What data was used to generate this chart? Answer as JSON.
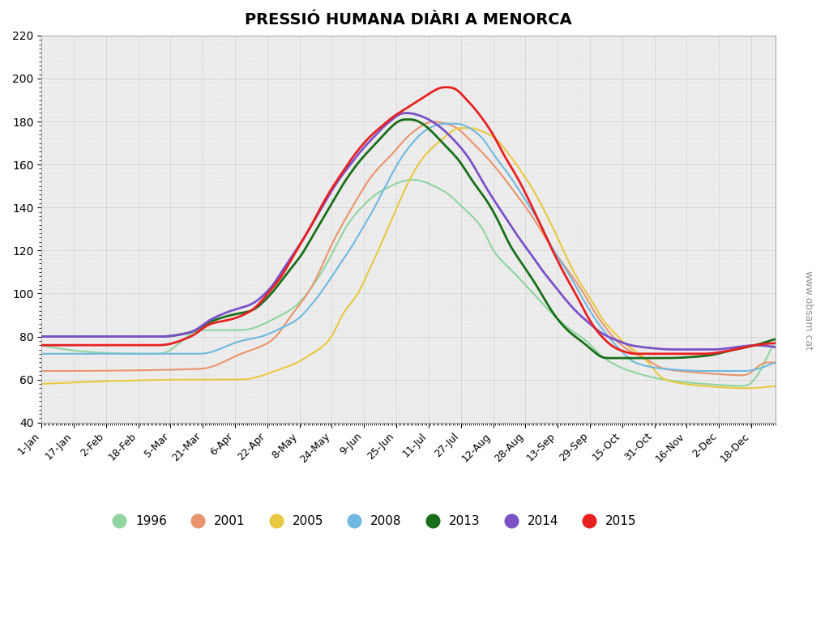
{
  "title": "PRESSIÓ HUMANA DIÀRI A MENORCA",
  "title_text": "PRESSIÓ HUMANA DIÀRI A MENORCA",
  "ylim": [
    40,
    220
  ],
  "yticks": [
    40,
    60,
    80,
    100,
    120,
    140,
    160,
    180,
    200,
    220
  ],
  "background_color": "#ffffff",
  "grid_color": "#cccccc",
  "watermark": "www.obsam.cat",
  "xtick_labels": [
    "1-Jan",
    "17-Jan",
    "2-Feb",
    "18-Feb",
    "5-Mar",
    "21-Mar",
    "6-Apr",
    "22-Apr",
    "8-May",
    "24-May",
    "9-Jun",
    "25-Jun",
    "11-Jul",
    "27-Jul",
    "12-Aug",
    "28-Aug",
    "13-Sep",
    "29-Sep",
    "15-Oct",
    "31-Oct",
    "16-Nov",
    "2-Dec",
    "18-Dec"
  ],
  "xtick_days": [
    1,
    17,
    33,
    49,
    65,
    81,
    97,
    113,
    129,
    145,
    161,
    177,
    193,
    209,
    225,
    241,
    257,
    273,
    289,
    305,
    321,
    337,
    353
  ],
  "legend_years": [
    "1996",
    "2001",
    "2005",
    "2008",
    "2013",
    "2014",
    "2015"
  ],
  "legend_colors": [
    "#90d4a0",
    "#e8956e",
    "#e8c840",
    "#70b8e0",
    "#1a6e1a",
    "#7b52c8",
    "#e82020"
  ],
  "series": {
    "1996": {
      "color": "#90d4a0",
      "linewidth": 1.5,
      "keypoints": [
        [
          1,
          76
        ],
        [
          60,
          72
        ],
        [
          80,
          83
        ],
        [
          100,
          83
        ],
        [
          120,
          90
        ],
        [
          128,
          95
        ],
        [
          140,
          110
        ],
        [
          155,
          135
        ],
        [
          170,
          148
        ],
        [
          185,
          153
        ],
        [
          200,
          148
        ],
        [
          210,
          140
        ],
        [
          220,
          130
        ],
        [
          225,
          120
        ],
        [
          235,
          110
        ],
        [
          245,
          100
        ],
        [
          255,
          90
        ],
        [
          265,
          82
        ],
        [
          270,
          79
        ],
        [
          280,
          70
        ],
        [
          290,
          65
        ],
        [
          310,
          60
        ],
        [
          330,
          58
        ],
        [
          350,
          57
        ],
        [
          365,
          79
        ]
      ]
    },
    "2001": {
      "color": "#e8956e",
      "linewidth": 1.5,
      "keypoints": [
        [
          1,
          64
        ],
        [
          80,
          65
        ],
        [
          100,
          72
        ],
        [
          115,
          78
        ],
        [
          125,
          90
        ],
        [
          135,
          103
        ],
        [
          145,
          123
        ],
        [
          155,
          140
        ],
        [
          165,
          155
        ],
        [
          175,
          165
        ],
        [
          185,
          175
        ],
        [
          195,
          180
        ],
        [
          205,
          178
        ],
        [
          215,
          170
        ],
        [
          225,
          160
        ],
        [
          235,
          148
        ],
        [
          245,
          135
        ],
        [
          255,
          120
        ],
        [
          265,
          107
        ],
        [
          270,
          100
        ],
        [
          275,
          92
        ],
        [
          280,
          85
        ],
        [
          290,
          75
        ],
        [
          300,
          70
        ],
        [
          310,
          65
        ],
        [
          330,
          63
        ],
        [
          350,
          62
        ],
        [
          360,
          68
        ],
        [
          365,
          68
        ]
      ]
    },
    "2005": {
      "color": "#e8c840",
      "linewidth": 1.5,
      "keypoints": [
        [
          1,
          58
        ],
        [
          80,
          60
        ],
        [
          100,
          60
        ],
        [
          120,
          65
        ],
        [
          128,
          68
        ],
        [
          135,
          72
        ],
        [
          140,
          75
        ],
        [
          145,
          80
        ],
        [
          150,
          90
        ],
        [
          158,
          100
        ],
        [
          163,
          110
        ],
        [
          168,
          120
        ],
        [
          175,
          135
        ],
        [
          183,
          152
        ],
        [
          190,
          163
        ],
        [
          200,
          172
        ],
        [
          208,
          177
        ],
        [
          215,
          177
        ],
        [
          218,
          176
        ],
        [
          225,
          173
        ],
        [
          235,
          162
        ],
        [
          245,
          148
        ],
        [
          255,
          130
        ],
        [
          265,
          110
        ],
        [
          275,
          95
        ],
        [
          280,
          87
        ],
        [
          285,
          82
        ],
        [
          290,
          77
        ],
        [
          300,
          70
        ],
        [
          310,
          60
        ],
        [
          330,
          57
        ],
        [
          350,
          56
        ],
        [
          365,
          57
        ]
      ]
    },
    "2008": {
      "color": "#70b8e0",
      "linewidth": 1.5,
      "keypoints": [
        [
          1,
          72
        ],
        [
          80,
          72
        ],
        [
          100,
          78
        ],
        [
          110,
          80
        ],
        [
          120,
          84
        ],
        [
          128,
          88
        ],
        [
          135,
          95
        ],
        [
          140,
          101
        ],
        [
          145,
          108
        ],
        [
          150,
          115
        ],
        [
          155,
          122
        ],
        [
          160,
          130
        ],
        [
          165,
          138
        ],
        [
          170,
          147
        ],
        [
          175,
          156
        ],
        [
          180,
          164
        ],
        [
          185,
          170
        ],
        [
          190,
          175
        ],
        [
          200,
          179
        ],
        [
          208,
          179
        ],
        [
          215,
          176
        ],
        [
          220,
          172
        ],
        [
          225,
          165
        ],
        [
          233,
          155
        ],
        [
          240,
          145
        ],
        [
          248,
          133
        ],
        [
          255,
          120
        ],
        [
          262,
          110
        ],
        [
          268,
          100
        ],
        [
          273,
          92
        ],
        [
          278,
          85
        ],
        [
          283,
          79
        ],
        [
          290,
          72
        ],
        [
          295,
          68
        ],
        [
          310,
          65
        ],
        [
          330,
          64
        ],
        [
          350,
          64
        ],
        [
          365,
          68
        ]
      ]
    },
    "2013": {
      "color": "#1a6e1a",
      "linewidth": 2.0,
      "keypoints": [
        [
          1,
          80
        ],
        [
          60,
          80
        ],
        [
          75,
          82
        ],
        [
          85,
          87
        ],
        [
          95,
          90
        ],
        [
          105,
          92
        ],
        [
          115,
          100
        ],
        [
          120,
          106
        ],
        [
          125,
          112
        ],
        [
          130,
          118
        ],
        [
          135,
          126
        ],
        [
          140,
          134
        ],
        [
          145,
          142
        ],
        [
          150,
          150
        ],
        [
          155,
          157
        ],
        [
          160,
          163
        ],
        [
          165,
          168
        ],
        [
          170,
          173
        ],
        [
          175,
          178
        ],
        [
          180,
          181
        ],
        [
          185,
          181
        ],
        [
          190,
          179
        ],
        [
          195,
          175
        ],
        [
          200,
          170
        ],
        [
          208,
          162
        ],
        [
          215,
          152
        ],
        [
          222,
          143
        ],
        [
          228,
          133
        ],
        [
          233,
          123
        ],
        [
          240,
          113
        ],
        [
          247,
          103
        ],
        [
          252,
          95
        ],
        [
          257,
          88
        ],
        [
          263,
          82
        ],
        [
          270,
          77
        ],
        [
          275,
          73
        ],
        [
          280,
          70
        ],
        [
          295,
          70
        ],
        [
          310,
          70
        ],
        [
          330,
          71
        ],
        [
          345,
          74
        ],
        [
          355,
          76
        ],
        [
          365,
          79
        ]
      ]
    },
    "2014": {
      "color": "#7b52c8",
      "linewidth": 2.0,
      "keypoints": [
        [
          1,
          80
        ],
        [
          60,
          80
        ],
        [
          75,
          82
        ],
        [
          85,
          88
        ],
        [
          95,
          92
        ],
        [
          105,
          95
        ],
        [
          115,
          103
        ],
        [
          120,
          110
        ],
        [
          125,
          117
        ],
        [
          130,
          124
        ],
        [
          135,
          132
        ],
        [
          140,
          140
        ],
        [
          145,
          148
        ],
        [
          150,
          155
        ],
        [
          155,
          161
        ],
        [
          160,
          167
        ],
        [
          165,
          172
        ],
        [
          170,
          177
        ],
        [
          175,
          181
        ],
        [
          180,
          184
        ],
        [
          183,
          184
        ],
        [
          188,
          183
        ],
        [
          193,
          181
        ],
        [
          198,
          178
        ],
        [
          205,
          172
        ],
        [
          213,
          163
        ],
        [
          218,
          155
        ],
        [
          223,
          147
        ],
        [
          230,
          137
        ],
        [
          237,
          127
        ],
        [
          244,
          118
        ],
        [
          250,
          110
        ],
        [
          256,
          103
        ],
        [
          262,
          96
        ],
        [
          268,
          90
        ],
        [
          273,
          86
        ],
        [
          278,
          82
        ],
        [
          282,
          80
        ],
        [
          287,
          78
        ],
        [
          293,
          76
        ],
        [
          300,
          75
        ],
        [
          315,
          74
        ],
        [
          335,
          74
        ],
        [
          345,
          75
        ],
        [
          355,
          76
        ],
        [
          365,
          75
        ]
      ]
    },
    "2015": {
      "color": "#e82020",
      "linewidth": 2.0,
      "keypoints": [
        [
          1,
          76
        ],
        [
          60,
          76
        ],
        [
          75,
          80
        ],
        [
          85,
          86
        ],
        [
          95,
          88
        ],
        [
          105,
          92
        ],
        [
          115,
          102
        ],
        [
          120,
          108
        ],
        [
          125,
          116
        ],
        [
          130,
          124
        ],
        [
          135,
          132
        ],
        [
          140,
          141
        ],
        [
          145,
          149
        ],
        [
          150,
          156
        ],
        [
          155,
          163
        ],
        [
          160,
          169
        ],
        [
          165,
          174
        ],
        [
          170,
          178
        ],
        [
          175,
          182
        ],
        [
          180,
          185
        ],
        [
          185,
          188
        ],
        [
          190,
          191
        ],
        [
          195,
          194
        ],
        [
          200,
          196
        ],
        [
          203,
          196
        ],
        [
          207,
          195
        ],
        [
          210,
          192
        ],
        [
          215,
          187
        ],
        [
          220,
          181
        ],
        [
          225,
          174
        ],
        [
          230,
          165
        ],
        [
          237,
          154
        ],
        [
          243,
          143
        ],
        [
          249,
          131
        ],
        [
          255,
          119
        ],
        [
          261,
          108
        ],
        [
          267,
          98
        ],
        [
          272,
          89
        ],
        [
          277,
          82
        ],
        [
          281,
          78
        ],
        [
          285,
          75
        ],
        [
          290,
          73
        ],
        [
          295,
          72
        ],
        [
          310,
          72
        ],
        [
          330,
          72
        ],
        [
          345,
          74
        ],
        [
          355,
          76
        ],
        [
          365,
          77
        ]
      ]
    }
  }
}
